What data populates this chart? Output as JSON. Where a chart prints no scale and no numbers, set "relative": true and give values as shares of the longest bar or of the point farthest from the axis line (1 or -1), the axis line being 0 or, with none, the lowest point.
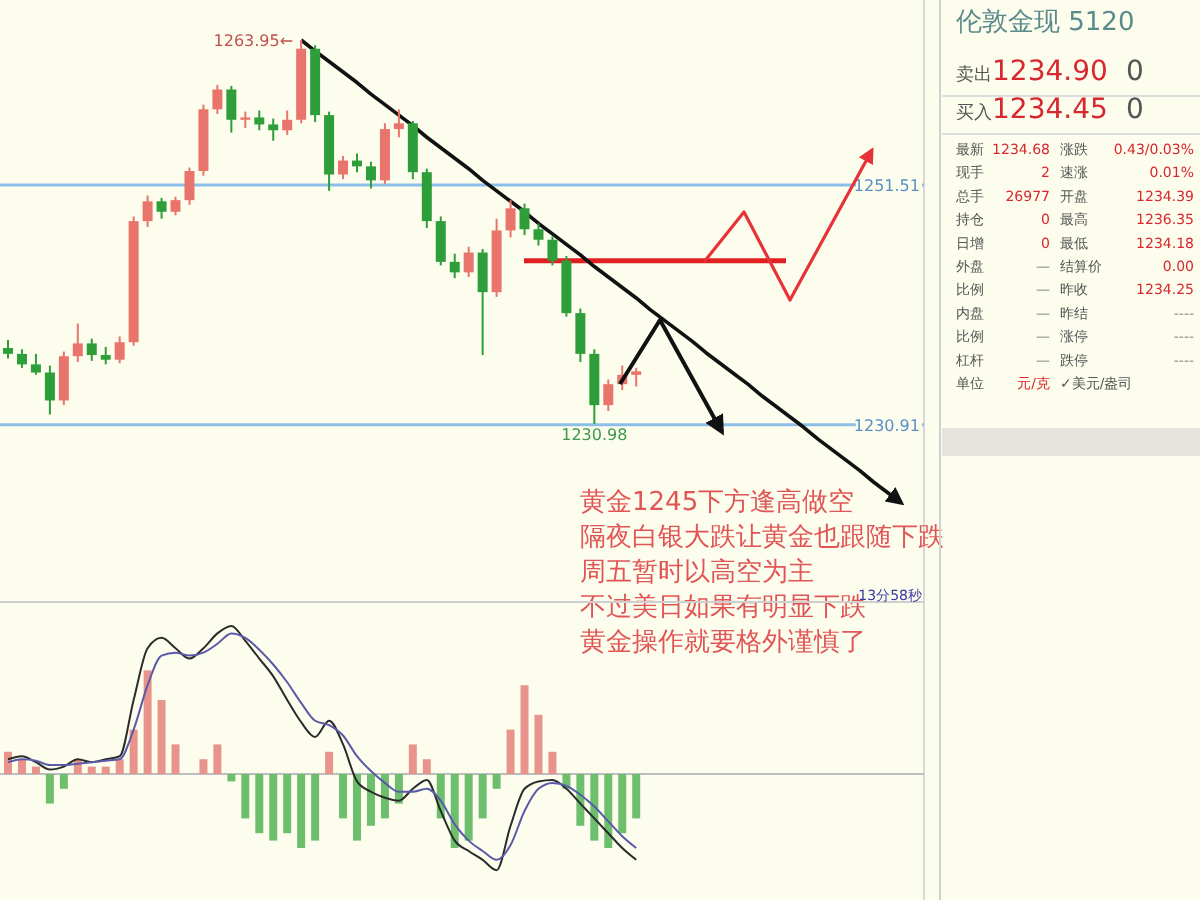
{
  "chart_data": [
    {
      "type": "candlestick",
      "categories": [
        null,
        null,
        null,
        null,
        null,
        null,
        null,
        null,
        null,
        null,
        null,
        null,
        null,
        null,
        null,
        null,
        null,
        null,
        null,
        null,
        null,
        null,
        null,
        null,
        null,
        null,
        null,
        null,
        null,
        null,
        null,
        null,
        null,
        null,
        null,
        null,
        null,
        null,
        null,
        null,
        null,
        null,
        null,
        null,
        null,
        null,
        null,
        null,
        null,
        null,
        null,
        null,
        null,
        null,
        null,
        null,
        null,
        null,
        null,
        null,
        null,
        null,
        null,
        null,
        null
      ],
      "ohlc": [
        [
          1237.5,
          1238.2,
          1236.6,
          1237.0
        ],
        [
          1237.0,
          1237.4,
          1235.8,
          1236.1
        ],
        [
          1236.1,
          1237.0,
          1235.2,
          1235.4
        ],
        [
          1235.4,
          1236.0,
          1231.8,
          1233.0
        ],
        [
          1233.0,
          1237.2,
          1232.6,
          1236.8
        ],
        [
          1236.8,
          1239.6,
          1236.3,
          1237.9
        ],
        [
          1237.9,
          1238.3,
          1236.4,
          1236.9
        ],
        [
          1236.9,
          1237.6,
          1236.1,
          1236.5
        ],
        [
          1236.5,
          1238.5,
          1236.2,
          1238.0
        ],
        [
          1238.0,
          1248.8,
          1237.7,
          1248.4
        ],
        [
          1248.4,
          1250.6,
          1247.9,
          1250.1
        ],
        [
          1250.1,
          1250.4,
          1248.6,
          1249.2
        ],
        [
          1249.2,
          1250.5,
          1248.9,
          1250.2
        ],
        [
          1250.2,
          1253.0,
          1249.8,
          1252.7
        ],
        [
          1252.7,
          1258.4,
          1252.3,
          1258.0
        ],
        [
          1258.0,
          1260.1,
          1257.6,
          1259.7
        ],
        [
          1259.7,
          1260.0,
          1256.0,
          1257.1
        ],
        [
          1257.1,
          1257.8,
          1256.4,
          1257.3
        ],
        [
          1257.3,
          1257.9,
          1256.2,
          1256.7
        ],
        [
          1256.7,
          1257.2,
          1255.3,
          1256.2
        ],
        [
          1256.2,
          1257.9,
          1255.8,
          1257.1
        ],
        [
          1257.1,
          1263.95,
          1256.8,
          1263.2
        ],
        [
          1263.2,
          1263.5,
          1256.9,
          1257.5
        ],
        [
          1257.5,
          1257.8,
          1251.0,
          1252.4
        ],
        [
          1252.4,
          1254.0,
          1252.0,
          1253.6
        ],
        [
          1253.6,
          1254.2,
          1252.6,
          1253.1
        ],
        [
          1253.1,
          1253.5,
          1251.2,
          1251.9
        ],
        [
          1251.9,
          1256.8,
          1251.6,
          1256.3
        ],
        [
          1256.3,
          1258.0,
          1255.6,
          1256.8
        ],
        [
          1256.8,
          1257.0,
          1252.0,
          1252.6
        ],
        [
          1252.6,
          1252.9,
          1247.8,
          1248.4
        ],
        [
          1248.4,
          1248.8,
          1244.6,
          1244.9
        ],
        [
          1244.9,
          1245.6,
          1243.5,
          1244.0
        ],
        [
          1244.0,
          1246.2,
          1243.6,
          1245.7
        ],
        [
          1245.7,
          1246.0,
          1236.9,
          1242.3
        ],
        [
          1242.3,
          1248.6,
          1241.9,
          1247.6
        ],
        [
          1247.6,
          1250.2,
          1247.0,
          1249.5
        ],
        [
          1249.5,
          1249.9,
          1247.2,
          1247.7
        ],
        [
          1247.7,
          1248.2,
          1246.3,
          1246.8
        ],
        [
          1246.8,
          1247.1,
          1244.6,
          1245.0
        ],
        [
          1245.0,
          1245.4,
          1240.2,
          1240.5
        ],
        [
          1240.5,
          1240.9,
          1236.3,
          1237.0
        ],
        [
          1237.0,
          1237.4,
          1230.98,
          1232.6
        ],
        [
          1232.6,
          1234.8,
          1232.1,
          1234.4
        ],
        [
          1234.4,
          1236.0,
          1233.9,
          1235.2
        ],
        [
          1235.2,
          1235.8,
          1234.2,
          1235.5
        ],
        null,
        null,
        null,
        null,
        null,
        null,
        null,
        null,
        null,
        null,
        null,
        null,
        null,
        null,
        null,
        null,
        null,
        null,
        null
      ],
      "colors": [
        "#2e9e3a",
        "#2e9e3a",
        "#2e9e3a",
        "#2e9e3a",
        "#e8746c",
        "#e8746c",
        "#2e9e3a",
        "#2e9e3a",
        "#e8746c",
        "#e8746c",
        "#e8746c",
        "#2e9e3a",
        "#e8746c",
        "#e8746c",
        "#e8746c",
        "#e8746c",
        "#2e9e3a",
        "#e8746c",
        "#2e9e3a",
        "#2e9e3a",
        "#e8746c",
        "#e8746c",
        "#2e9e3a",
        "#2e9e3a",
        "#e8746c",
        "#2e9e3a",
        "#2e9e3a",
        "#e8746c",
        "#e8746c",
        "#2e9e3a",
        "#2e9e3a",
        "#2e9e3a",
        "#2e9e3a",
        "#e8746c",
        "#2e9e3a",
        "#e8746c",
        "#e8746c",
        "#2e9e3a",
        "#2e9e3a",
        "#2e9e3a",
        "#2e9e3a",
        "#2e9e3a",
        "#2e9e3a",
        "#e8746c",
        "#e8746c",
        "#e8746c",
        null,
        null,
        null,
        null,
        null,
        null,
        null,
        null,
        null,
        null,
        null,
        null,
        null,
        null,
        null,
        null,
        null,
        null,
        null
      ],
      "series": [
        {
          "type": "line",
          "color": "#111111",
          "values": [
            null,
            null,
            null,
            null,
            null,
            null,
            null,
            null,
            null,
            null,
            null,
            null,
            null,
            null,
            null,
            null,
            null,
            null,
            null,
            null,
            null,
            1263.95,
            1263.0,
            1262.1,
            1261.2,
            1260.3,
            1259.3,
            1258.4,
            1257.5,
            1256.6,
            1255.6,
            1254.7,
            1253.8,
            1252.9,
            1251.9,
            1251.0,
            1250.1,
            1249.2,
            1248.2,
            1247.3,
            1246.4,
            1245.5,
            1244.5,
            1243.6,
            1242.7,
            1241.8,
            1240.8,
            1239.9,
            1239.0,
            1238.1,
            1237.1,
            1236.2,
            1235.3,
            1234.4,
            1233.4,
            1232.5,
            1231.6,
            1230.7,
            1229.7,
            1228.8,
            1227.9,
            1227.0,
            1226.0,
            1225.1,
            1224.2
          ]
        }
      ],
      "tick_labels": false,
      "ref_lines": [
        {
          "axis": "y",
          "value": 1251.51,
          "label": "1251.51",
          "color": "#8cbfe8"
        },
        {
          "axis": "y",
          "value": 1230.91,
          "label": "1230.91",
          "color": "#8cbfe8"
        },
        {
          "axis": "y",
          "value": 1245,
          "color": "#e02020"
        }
      ],
      "annotations": [
        "1263.95←",
        {
          "text": "1230.98",
          "y": 1230.98
        },
        "黄金1245下方逢高做空",
        "隔夜白银大跌让黄金也跟随下跌",
        "周五暂时以高空为主",
        "不过美日如果有明显下跌",
        "黄金操作就要格外谨慎了"
      ]
    },
    {
      "type": "bar",
      "relative": true,
      "categories": [
        null,
        null,
        null,
        null,
        null,
        null,
        null,
        null,
        null,
        null,
        null,
        null,
        null,
        null,
        null,
        null,
        null,
        null,
        null,
        null,
        null,
        null,
        null,
        null,
        null,
        null,
        null,
        null,
        null,
        null,
        null,
        null,
        null,
        null,
        null,
        null,
        null,
        null,
        null,
        null,
        null,
        null,
        null,
        null,
        null,
        null,
        null,
        null,
        null,
        null,
        null,
        null,
        null,
        null,
        null,
        null,
        null,
        null,
        null,
        null,
        null,
        null,
        null,
        null,
        null
      ],
      "series": [
        {
          "type": "bar",
          "values": [
            0.15,
            0.1,
            0.05,
            -0.2,
            -0.1,
            0.1,
            0.05,
            0.05,
            0.1,
            0.3,
            0.7,
            0.5,
            0.2,
            0,
            0.1,
            0.2,
            -0.05,
            -0.3,
            -0.4,
            -0.45,
            -0.4,
            -0.5,
            -0.45,
            0.15,
            -0.3,
            -0.45,
            -0.35,
            -0.3,
            -0.2,
            0.2,
            0.1,
            -0.3,
            -0.5,
            -0.45,
            -0.3,
            -0.1,
            0.3,
            0.6,
            0.4,
            0.15,
            -0.1,
            -0.35,
            -0.45,
            -0.5,
            -0.4,
            -0.3,
            null,
            null,
            null,
            null,
            null,
            null,
            null,
            null,
            null,
            null,
            null,
            null,
            null,
            null,
            null,
            null,
            null,
            null,
            null
          ],
          "colors": [
            "#e8948c",
            "#e8948c",
            "#e8948c",
            "#6dbf6d",
            "#6dbf6d",
            "#e8948c",
            "#e8948c",
            "#e8948c",
            "#e8948c",
            "#e8948c",
            "#e8948c",
            "#e8948c",
            "#e8948c",
            "#e8948c",
            "#e8948c",
            "#e8948c",
            "#6dbf6d",
            "#6dbf6d",
            "#6dbf6d",
            "#6dbf6d",
            "#6dbf6d",
            "#6dbf6d",
            "#6dbf6d",
            "#e8948c",
            "#6dbf6d",
            "#6dbf6d",
            "#6dbf6d",
            "#6dbf6d",
            "#6dbf6d",
            "#e8948c",
            "#e8948c",
            "#6dbf6d",
            "#6dbf6d",
            "#6dbf6d",
            "#6dbf6d",
            "#6dbf6d",
            "#e8948c",
            "#e8948c",
            "#e8948c",
            "#e8948c",
            "#6dbf6d",
            "#6dbf6d",
            "#6dbf6d",
            "#6dbf6d",
            "#6dbf6d",
            "#6dbf6d",
            null,
            null,
            null,
            null,
            null,
            null,
            null,
            null,
            null,
            null,
            null,
            null,
            null,
            null,
            null,
            null,
            null,
            null,
            null
          ]
        },
        {
          "type": "line",
          "color": "#2b2b2b",
          "values": [
            0.1,
            0.12,
            0.08,
            0.03,
            0.05,
            0.1,
            0.08,
            0.1,
            0.12,
            0.5,
            0.85,
            0.92,
            0.85,
            0.78,
            0.85,
            0.95,
            1,
            0.9,
            0.78,
            0.66,
            0.5,
            0.35,
            0.25,
            0.36,
            0.2,
            -0.05,
            -0.12,
            -0.16,
            -0.18,
            -0.1,
            -0.04,
            -0.25,
            -0.45,
            -0.52,
            -0.58,
            -0.65,
            -0.35,
            -0.1,
            -0.05,
            -0.04,
            -0.1,
            -0.2,
            -0.3,
            -0.4,
            -0.5,
            -0.58,
            null,
            null,
            null,
            null,
            null,
            null,
            null,
            null,
            null,
            null,
            null,
            null,
            null,
            null,
            null,
            null,
            null,
            null,
            null
          ]
        },
        {
          "type": "line",
          "color": "#5a5aa8",
          "values": [
            0.08,
            0.1,
            0.09,
            0.06,
            0.06,
            0.07,
            0.08,
            0.09,
            0.1,
            0.3,
            0.6,
            0.8,
            0.82,
            0.8,
            0.82,
            0.88,
            0.95,
            0.92,
            0.84,
            0.74,
            0.62,
            0.48,
            0.36,
            0.33,
            0.26,
            0.12,
            0.02,
            -0.06,
            -0.12,
            -0.12,
            -0.1,
            -0.18,
            -0.34,
            -0.45,
            -0.52,
            -0.58,
            -0.48,
            -0.25,
            -0.1,
            -0.06,
            -0.08,
            -0.14,
            -0.22,
            -0.32,
            -0.42,
            -0.5,
            null,
            null,
            null,
            null,
            null,
            null,
            null,
            null,
            null,
            null,
            null,
            null,
            null,
            null,
            null,
            null,
            null,
            null,
            null
          ]
        }
      ],
      "annotations": [
        "13分58秒"
      ]
    },
    {
      "type": "other",
      "title": "伦敦金现 5120",
      "annotations": [
        "卖出",
        "1234.90",
        "0",
        "买入",
        "1234.45",
        "0",
        "最新",
        "1234.68",
        "涨跌",
        "0.43/0.03%",
        "现手",
        "2",
        "速涨",
        "0.01%",
        "总手",
        "26977",
        "开盘",
        "1234.39",
        "持仓",
        "0",
        "最高",
        "1236.35",
        "日增",
        "0",
        "最低",
        "1234.18",
        "外盘",
        "—",
        "结算价",
        "0.00",
        "比例",
        "—",
        "昨收",
        "1234.25",
        "内盘",
        "—",
        "昨结",
        "----",
        "比例",
        "—",
        "涨停",
        "----",
        "杠杆",
        "—",
        "跌停",
        "----",
        "单位",
        "元/克",
        "✓美元/盎司"
      ]
    }
  ]
}
